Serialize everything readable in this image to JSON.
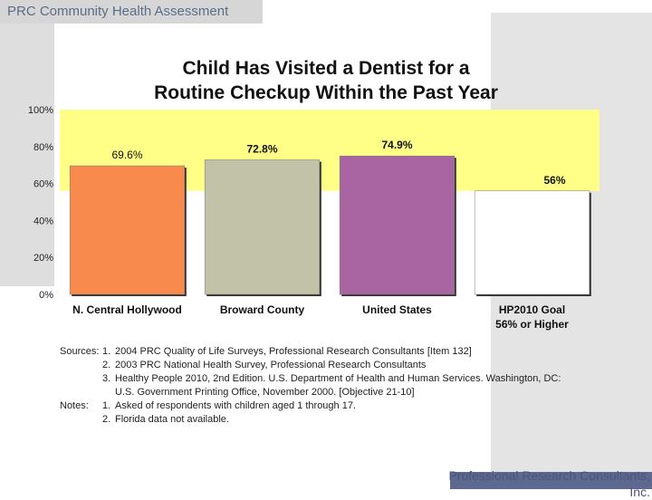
{
  "header": {
    "section": "PRC Community Health Assessment"
  },
  "footer": {
    "credit": "Professional Research Consultants, Inc."
  },
  "chart_data": {
    "type": "bar",
    "title_line1": "Child Has Visited a Dentist for a",
    "title_line2": "Routine Checkup Within the Past Year",
    "categories": [
      "N. Central Hollywood",
      "Broward County",
      "United States",
      "HP2010 Goal"
    ],
    "category_sublabels": [
      "",
      "",
      "",
      "56% or Higher"
    ],
    "values": [
      69.6,
      72.8,
      74.9,
      56
    ],
    "value_labels": [
      "69.6%",
      "72.8%",
      "74.9%",
      "56%"
    ],
    "bar_colors": [
      "#f98a4e",
      "#c2c2a8",
      "#a865a2",
      "#ffffff"
    ],
    "ylim": [
      0,
      100
    ],
    "yticks": [
      "0%",
      "20%",
      "40%",
      "60%",
      "80%",
      "100%"
    ],
    "goal_band": {
      "from": 56,
      "to": 100,
      "color": "#ffff88"
    }
  },
  "notes": {
    "sources_label": "Sources:",
    "sources": [
      {
        "num": "1.",
        "text": "2004 PRC Quality of Life Surveys, Professional Research Consultants [Item 132]"
      },
      {
        "num": "2.",
        "text": "2003 PRC National Health Survey, Professional Research Consultants"
      },
      {
        "num": "3.",
        "text": "Healthy People 2010, 2nd Edition. U.S. Department of Health and Human Services. Washington, DC:"
      }
    ],
    "source3_cont": "U.S. Government Printing Office, November 2000. [Objective 21-10]",
    "notes_label": "Notes:",
    "notes": [
      {
        "num": "1.",
        "text": "Asked of respondents with children aged 1 through 17."
      },
      {
        "num": "2.",
        "text": "Florida data not available."
      }
    ]
  }
}
